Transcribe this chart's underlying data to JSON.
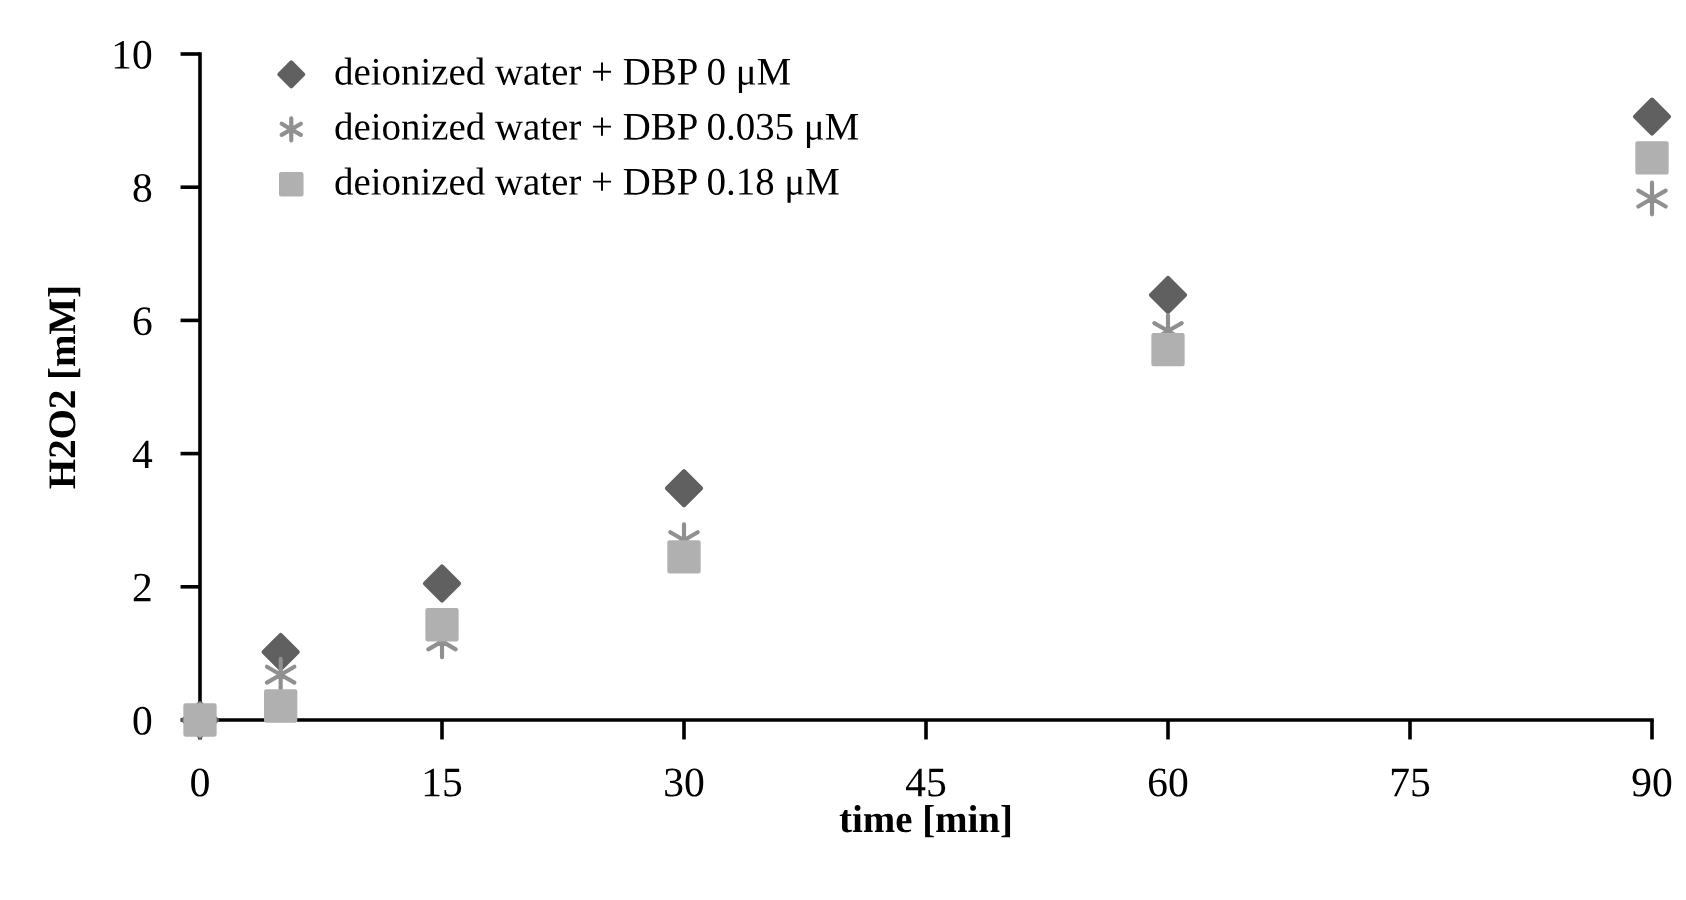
{
  "chart_data": {
    "type": "scatter",
    "xlabel": "time [min]",
    "ylabel": "H2O2 [mM]",
    "xlim": [
      0,
      90
    ],
    "xticks": [
      0,
      15,
      30,
      45,
      60,
      75,
      90
    ],
    "ylim": [
      0,
      10
    ],
    "yticks": [
      0,
      2,
      4,
      6,
      8,
      10
    ],
    "grid": false,
    "legend": "top left",
    "series": [
      {
        "name": "deionized water + DBP 0 μM",
        "color": "#606060",
        "marker": "diamond",
        "x": [
          0,
          5,
          15,
          30,
          60,
          90
        ],
        "values": [
          0,
          1.02,
          2.05,
          3.48,
          6.38,
          9.06
        ]
      },
      {
        "name": "deionized water + DBP 0.035 μM",
        "color": "#909090",
        "marker": "cross",
        "x": [
          0,
          5,
          15,
          30,
          60,
          90
        ],
        "values": [
          0,
          0.68,
          1.18,
          2.7,
          5.84,
          7.83
        ]
      },
      {
        "name": "deionized water + DBP 0.18 μM",
        "color": "#b0b0b0",
        "marker": "square",
        "x": [
          0,
          5,
          15,
          30,
          60,
          90
        ],
        "values": [
          0,
          0.21,
          1.43,
          2.45,
          5.56,
          8.44
        ]
      }
    ]
  }
}
